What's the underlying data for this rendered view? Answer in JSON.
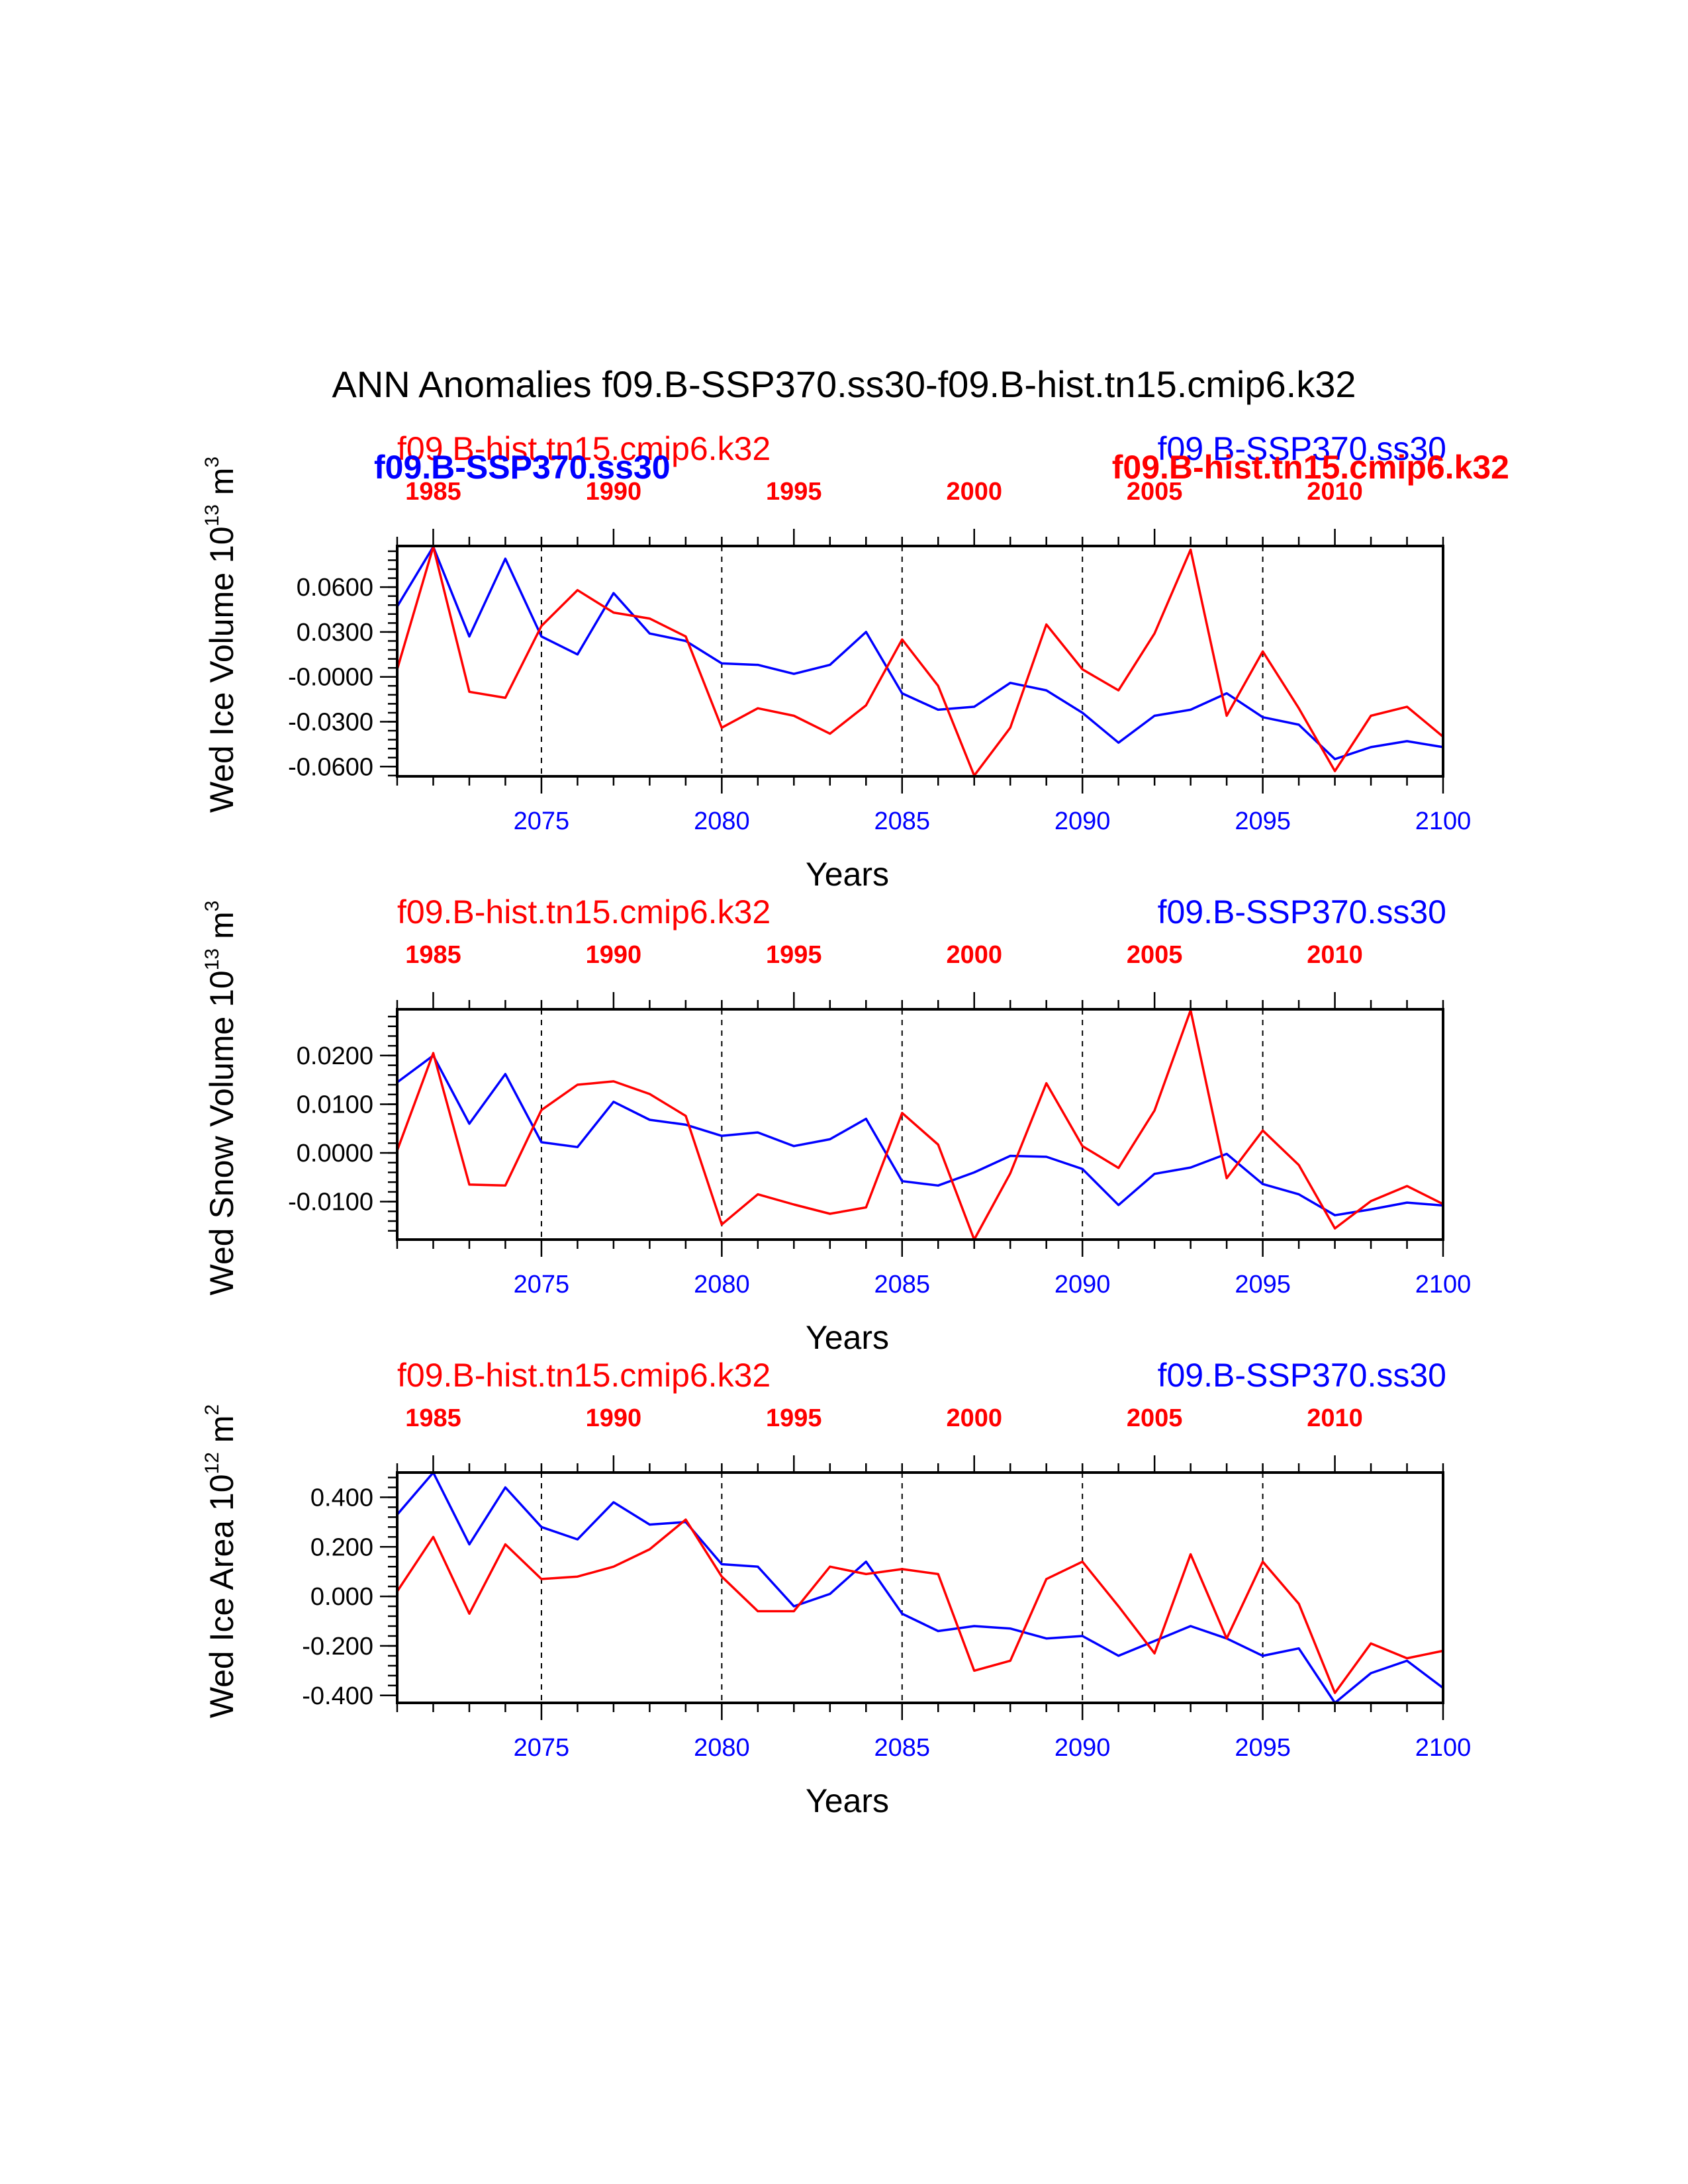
{
  "page_title": "ANN Anomalies f09.B-SSP370.ss30-f09.B-hist.tn15.cmip6.k32",
  "colors": {
    "red_series": "#ff0000",
    "blue_series": "#0000ff"
  },
  "chart_data": [
    {
      "type": "line",
      "title": "",
      "xlabel": "Years",
      "ylabel": "Wed Ice Volume 10",
      "ylabel_exp": "13",
      "ylabel_unit": " m",
      "ylabel_unit_exp": "3",
      "top_left_label": "f09.B-hist.tn15.cmip6.k32",
      "top_right_label": "f09.B-SSP370.ss30",
      "overlay_left": "f09.B-SSP370.ss30",
      "overlay_right": "f09.B-hist.tn15.cmip6.k32",
      "bottom_ticks": [
        "2075",
        "2080",
        "2085",
        "2090",
        "2095",
        "2100"
      ],
      "top_ticks": [
        "1985",
        "1990",
        "1995",
        "2000",
        "2005",
        "2010"
      ],
      "yticks": [
        "0.0600",
        "0.0300",
        "-0.0000",
        "-0.0300",
        "-0.0600"
      ],
      "ytick_values": [
        0.06,
        0.03,
        0.0,
        -0.03,
        -0.06
      ],
      "xlim": [
        2071,
        2100
      ],
      "ylim": [
        -0.0665,
        0.0875
      ],
      "x": [
        2071,
        2072,
        2073,
        2074,
        2075,
        2076,
        2077,
        2078,
        2079,
        2080,
        2081,
        2082,
        2083,
        2084,
        2085,
        2086,
        2087,
        2088,
        2089,
        2090,
        2091,
        2092,
        2093,
        2094,
        2095,
        2096,
        2097,
        2098,
        2099,
        2100
      ],
      "series": [
        {
          "name": "f09.B-SSP370.ss30",
          "color": "blue",
          "values": [
            0.047,
            0.087,
            0.027,
            0.079,
            0.027,
            0.015,
            0.056,
            0.029,
            0.024,
            0.009,
            0.008,
            0.002,
            0.008,
            0.03,
            -0.011,
            -0.022,
            -0.02,
            -0.004,
            -0.009,
            -0.024,
            -0.044,
            -0.026,
            -0.022,
            -0.011,
            -0.027,
            -0.032,
            -0.055,
            -0.047,
            -0.043,
            -0.047
          ]
        },
        {
          "name": "f09.B-hist.tn15.cmip6.k32",
          "color": "red",
          "values": [
            0.005,
            0.087,
            -0.01,
            -0.014,
            0.034,
            0.058,
            0.043,
            0.039,
            0.027,
            -0.034,
            -0.021,
            -0.026,
            -0.038,
            -0.019,
            0.025,
            -0.006,
            -0.066,
            -0.034,
            0.035,
            0.005,
            -0.009,
            0.029,
            0.085,
            -0.026,
            0.017,
            -0.021,
            -0.063,
            -0.026,
            -0.02,
            -0.04
          ]
        }
      ]
    },
    {
      "type": "line",
      "title": "",
      "xlabel": "Years",
      "ylabel": "Wed Snow Volume 10",
      "ylabel_exp": "13",
      "ylabel_unit": " m",
      "ylabel_unit_exp": "3",
      "top_left_label": "f09.B-hist.tn15.cmip6.k32",
      "top_right_label": "f09.B-SSP370.ss30",
      "bottom_ticks": [
        "2075",
        "2080",
        "2085",
        "2090",
        "2095",
        "2100"
      ],
      "top_ticks": [
        "1985",
        "1990",
        "1995",
        "2000",
        "2005",
        "2010"
      ],
      "yticks": [
        "0.0200",
        "0.0100",
        "0.0000",
        "-0.0100"
      ],
      "ytick_values": [
        0.02,
        0.01,
        0.0,
        -0.01
      ],
      "xlim": [
        2071,
        2100
      ],
      "ylim": [
        -0.0178,
        0.0295
      ],
      "x": [
        2071,
        2072,
        2073,
        2074,
        2075,
        2076,
        2077,
        2078,
        2079,
        2080,
        2081,
        2082,
        2083,
        2084,
        2085,
        2086,
        2087,
        2088,
        2089,
        2090,
        2091,
        2092,
        2093,
        2094,
        2095,
        2096,
        2097,
        2098,
        2099,
        2100
      ],
      "series": [
        {
          "name": "f09.B-SSP370.ss30",
          "color": "blue",
          "values": [
            0.0145,
            0.02,
            0.006,
            0.0162,
            0.0022,
            0.0012,
            0.0105,
            0.0068,
            0.0058,
            0.0035,
            0.0042,
            0.0014,
            0.0028,
            0.007,
            -0.0058,
            -0.0067,
            -0.004,
            -0.0006,
            -0.0008,
            -0.0033,
            -0.0107,
            -0.0043,
            -0.003,
            -0.0002,
            -0.0064,
            -0.0085,
            -0.0128,
            -0.0116,
            -0.0102,
            -0.0108
          ]
        },
        {
          "name": "f09.B-hist.tn15.cmip6.k32",
          "color": "red",
          "values": [
            0.0005,
            0.0205,
            -0.0065,
            -0.0067,
            0.0088,
            0.014,
            0.0147,
            0.0121,
            0.0076,
            -0.0147,
            -0.0085,
            -0.0106,
            -0.0125,
            -0.0112,
            0.0082,
            0.0017,
            -0.0178,
            -0.0042,
            0.0143,
            0.0014,
            -0.0031,
            0.0087,
            0.0293,
            -0.0052,
            0.0046,
            -0.0025,
            -0.0155,
            -0.0099,
            -0.0068,
            -0.0105
          ]
        }
      ]
    },
    {
      "type": "line",
      "title": "",
      "xlabel": "Years",
      "ylabel": "Wed Ice Area 10",
      "ylabel_exp": "12",
      "ylabel_unit": " m",
      "ylabel_unit_exp": "2",
      "top_left_label": "f09.B-hist.tn15.cmip6.k32",
      "top_right_label": "f09.B-SSP370.ss30",
      "bottom_ticks": [
        "2075",
        "2080",
        "2085",
        "2090",
        "2095",
        "2100"
      ],
      "top_ticks": [
        "1985",
        "1990",
        "1995",
        "2000",
        "2005",
        "2010"
      ],
      "yticks": [
        "0.400",
        "0.200",
        "0.000",
        "-0.200",
        "-0.400"
      ],
      "ytick_values": [
        0.4,
        0.2,
        0.0,
        -0.2,
        -0.4
      ],
      "xlim": [
        2071,
        2100
      ],
      "ylim": [
        -0.43,
        0.5
      ],
      "x": [
        2071,
        2072,
        2073,
        2074,
        2075,
        2076,
        2077,
        2078,
        2079,
        2080,
        2081,
        2082,
        2083,
        2084,
        2085,
        2086,
        2087,
        2088,
        2089,
        2090,
        2091,
        2092,
        2093,
        2094,
        2095,
        2096,
        2097,
        2098,
        2099,
        2100
      ],
      "series": [
        {
          "name": "f09.B-SSP370.ss30",
          "color": "blue",
          "values": [
            0.33,
            0.5,
            0.21,
            0.44,
            0.28,
            0.23,
            0.38,
            0.29,
            0.3,
            0.13,
            0.12,
            -0.04,
            0.01,
            0.14,
            -0.07,
            -0.14,
            -0.12,
            -0.13,
            -0.17,
            -0.16,
            -0.24,
            -0.18,
            -0.12,
            -0.17,
            -0.24,
            -0.21,
            -0.43,
            -0.31,
            -0.26,
            -0.37
          ]
        },
        {
          "name": "f09.B-hist.tn15.cmip6.k32",
          "color": "red",
          "values": [
            0.02,
            0.24,
            -0.07,
            0.21,
            0.07,
            0.08,
            0.12,
            0.19,
            0.31,
            0.08,
            -0.06,
            -0.06,
            0.12,
            0.09,
            0.11,
            0.09,
            -0.3,
            -0.26,
            0.07,
            0.14,
            -0.04,
            -0.23,
            0.17,
            -0.17,
            0.14,
            -0.03,
            -0.39,
            -0.19,
            -0.25,
            -0.22
          ]
        }
      ]
    }
  ]
}
